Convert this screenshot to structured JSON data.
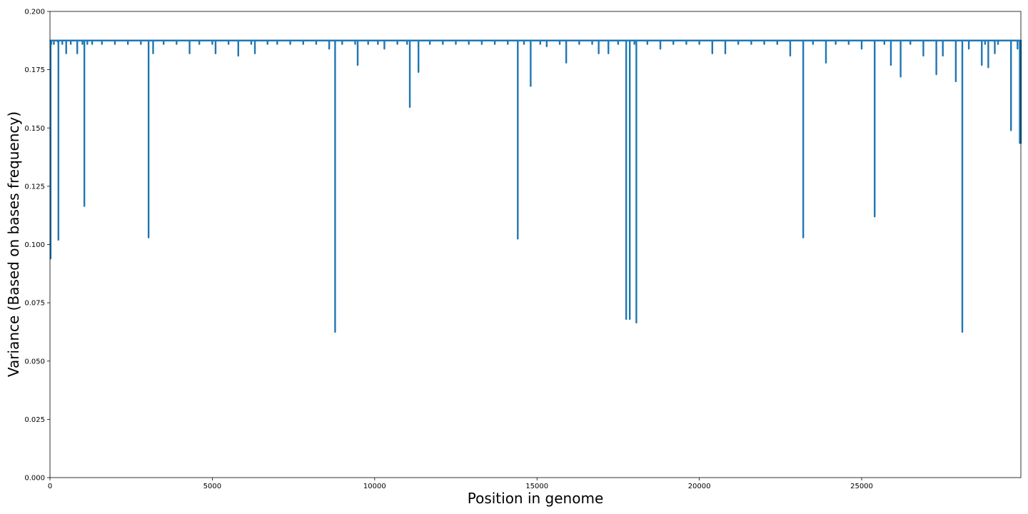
{
  "chart_data": {
    "type": "line",
    "title": "",
    "xlabel": "Position in genome",
    "ylabel": "Variance (Based on bases frequency)",
    "xlim": [
      0,
      29903
    ],
    "ylim": [
      0,
      0.2
    ],
    "x_ticks": [
      0,
      5000,
      10000,
      15000,
      20000,
      25000
    ],
    "x_tick_labels": [
      "0",
      "5000",
      "10000",
      "15000",
      "20000",
      "25000"
    ],
    "y_ticks": [
      0,
      0.025,
      0.05,
      0.075,
      0.1,
      0.125,
      0.15,
      0.175,
      0.2
    ],
    "y_tick_labels": [
      "0.000",
      "0.025",
      "0.050",
      "0.075",
      "0.100",
      "0.125",
      "0.150",
      "0.175",
      "0.200"
    ],
    "grid": false,
    "line_color": "#1f77b4",
    "baseline": 0.1875,
    "series": [
      {
        "x": [
          0,
          20,
          40,
          60,
          120,
          150,
          240,
          260,
          300,
          380,
          420,
          500,
          520,
          640,
          700,
          840,
          900,
          1000,
          1059,
          1150,
          1200,
          1300,
          1400,
          1600,
          1800,
          2000,
          2200,
          2400,
          2600,
          2800,
          3000,
          3037,
          3100,
          3177,
          3300,
          3500,
          3700,
          3900,
          4100,
          4300,
          4400,
          4600,
          4800,
          5000,
          5100,
          5300,
          5500,
          5700,
          5800,
          6000,
          6200,
          6312,
          6500,
          6700,
          6900,
          7000,
          7200,
          7400,
          7600,
          7800,
          8000,
          8200,
          8400,
          8600,
          8782,
          8900,
          9000,
          9200,
          9400,
          9477,
          9600,
          9800,
          10000,
          10100,
          10300,
          10500,
          10700,
          10900,
          11000,
          11083,
          11200,
          11350,
          11500,
          11700,
          11900,
          12100,
          12300,
          12500,
          12700,
          12900,
          13100,
          13300,
          13500,
          13700,
          13900,
          14100,
          14300,
          14408,
          14500,
          14600,
          14700,
          14805,
          14900,
          15100,
          15300,
          15500,
          15700,
          15900,
          16100,
          16300,
          16500,
          16700,
          16900,
          17000,
          17200,
          17400,
          17500,
          17600,
          17747,
          17858,
          17900,
          18000,
          18060,
          18200,
          18400,
          18600,
          18800,
          19000,
          19200,
          19400,
          19600,
          19800,
          20000,
          20200,
          20400,
          20600,
          20800,
          21000,
          21200,
          21400,
          21600,
          21800,
          22000,
          22200,
          22400,
          22600,
          22800,
          23000,
          23200,
          23403,
          23500,
          23700,
          23900,
          24000,
          24200,
          24400,
          24600,
          24800,
          25000,
          25200,
          25400,
          25563,
          25700,
          25900,
          26100,
          26200,
          26300,
          26500,
          26700,
          26900,
          27100,
          27300,
          27400,
          27500,
          27700,
          27900,
          28000,
          28100,
          28144,
          28300,
          28500,
          28700,
          28800,
          28900,
          29000,
          29100,
          29200,
          29400,
          29600,
          29700,
          29800,
          29870,
          29903
        ],
        "y": [
          0.1875,
          0.094,
          0.186,
          0.1875,
          0.186,
          0.1875,
          0.187,
          0.102,
          0.1875,
          0.186,
          0.1875,
          0.182,
          0.1875,
          0.186,
          0.1875,
          0.182,
          0.1875,
          0.186,
          0.1165,
          0.186,
          0.1875,
          0.186,
          0.1875,
          0.186,
          0.1875,
          0.186,
          0.1875,
          0.186,
          0.1875,
          0.186,
          0.1875,
          0.103,
          0.1875,
          0.182,
          0.1875,
          0.186,
          0.1875,
          0.186,
          0.1875,
          0.182,
          0.1875,
          0.186,
          0.1875,
          0.186,
          0.182,
          0.1875,
          0.186,
          0.1875,
          0.181,
          0.1875,
          0.186,
          0.182,
          0.1875,
          0.186,
          0.1875,
          0.186,
          0.1875,
          0.186,
          0.1875,
          0.186,
          0.1875,
          0.186,
          0.1875,
          0.184,
          0.0625,
          0.1875,
          0.186,
          0.1875,
          0.186,
          0.177,
          0.1875,
          0.186,
          0.1875,
          0.186,
          0.184,
          0.1875,
          0.186,
          0.1875,
          0.186,
          0.159,
          0.1875,
          0.174,
          0.1875,
          0.186,
          0.1875,
          0.186,
          0.1875,
          0.186,
          0.1875,
          0.186,
          0.1875,
          0.186,
          0.1875,
          0.186,
          0.1875,
          0.186,
          0.1875,
          0.1025,
          0.1875,
          0.186,
          0.1875,
          0.168,
          0.1875,
          0.186,
          0.185,
          0.1875,
          0.186,
          0.178,
          0.1875,
          0.186,
          0.1875,
          0.186,
          0.182,
          0.1875,
          0.182,
          0.1875,
          0.186,
          0.1875,
          0.068,
          0.068,
          0.1875,
          0.186,
          0.0665,
          0.1875,
          0.186,
          0.1875,
          0.184,
          0.1875,
          0.186,
          0.1875,
          0.186,
          0.1875,
          0.186,
          0.1875,
          0.182,
          0.1875,
          0.182,
          0.1875,
          0.186,
          0.1875,
          0.186,
          0.1875,
          0.186,
          0.1875,
          0.186,
          0.1875,
          0.181,
          0.1875,
          0.103,
          0.1875,
          0.186,
          0.1875,
          0.178,
          0.1875,
          0.186,
          0.1875,
          0.186,
          0.1875,
          0.184,
          0.1875,
          0.112,
          0.1875,
          0.186,
          0.177,
          0.1875,
          0.172,
          0.1875,
          0.186,
          0.1875,
          0.181,
          0.1875,
          0.173,
          0.1875,
          0.181,
          0.1875,
          0.17,
          0.1875,
          0.0625,
          0.1875,
          0.184,
          0.1875,
          0.177,
          0.186,
          0.176,
          0.1875,
          0.182,
          0.186,
          0.1875,
          0.149,
          0.1875,
          0.184,
          0.1435,
          0.1435
        ]
      }
    ]
  }
}
